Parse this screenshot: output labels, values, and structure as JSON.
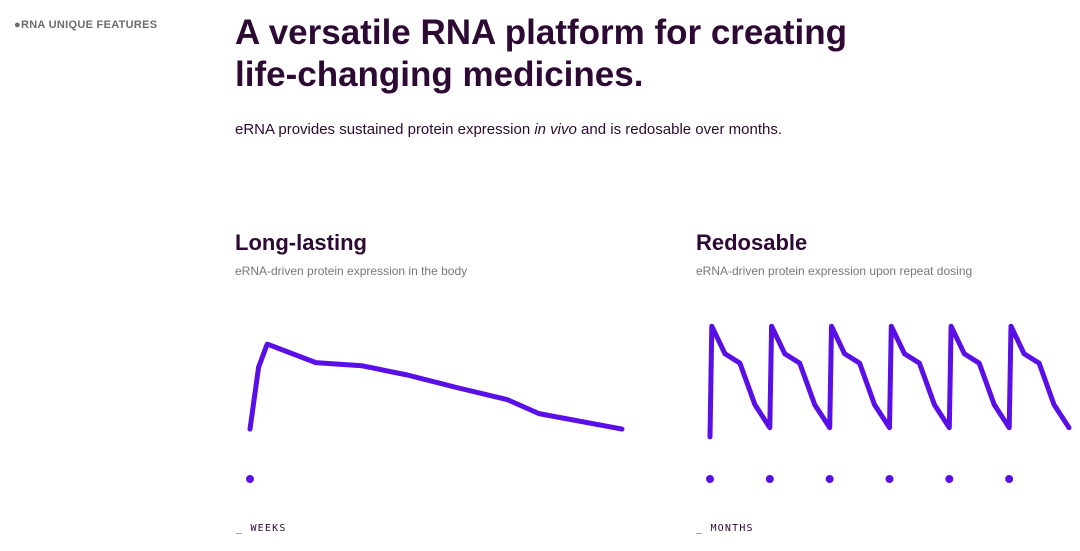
{
  "section": {
    "eyebrow": "●RNA UNIQUE FEATURES",
    "headline_line1": "A versatile RNA platform for creating",
    "headline_line2": "life-changing medicines.",
    "subhead_before": "eRNA provides sustained protein expression ",
    "subhead_em": "in vivo",
    "subhead_after": " and is redosable over months."
  },
  "cards": {
    "left": {
      "title": "Long-lasting",
      "caption": "eRNA-driven protein expression in the body",
      "axis_label": "_ WEEKS"
    },
    "right": {
      "title": "Redosable",
      "caption": "eRNA-driven protein expression upon repeat dosing",
      "axis_label": "_ MONTHS"
    }
  },
  "colors": {
    "line": "#5a0fe6",
    "heading": "#2d0a33",
    "muted": "#7a767c"
  },
  "chart_data": [
    {
      "type": "line",
      "title": "Long-lasting",
      "xlabel": "WEEKS",
      "ylabel": "",
      "series": [
        {
          "values": [
            0,
            40,
            55,
            43,
            41,
            35,
            27,
            19,
            10,
            0
          ]
        }
      ],
      "x": [
        0,
        0.3,
        0.6,
        2.3,
        3.9,
        5.5,
        7.2,
        9.0,
        10.1,
        13.0
      ],
      "dose_markers_x": [
        0
      ],
      "ylim": [
        -20,
        90
      ]
    },
    {
      "type": "line",
      "title": "Redosable",
      "xlabel": "MONTHS",
      "ylabel": "",
      "series": [
        {
          "values": [
            0,
            48,
            36,
            32,
            14,
            4,
            48,
            36,
            32,
            14,
            4,
            48,
            36,
            32,
            14,
            4,
            48,
            36,
            32,
            14,
            4,
            48,
            36,
            32,
            14,
            4,
            48,
            36,
            32,
            14,
            4
          ]
        }
      ],
      "dose_markers_x": [
        0,
        1,
        2,
        3,
        4,
        5
      ],
      "ylim": [
        -10,
        55
      ]
    }
  ]
}
